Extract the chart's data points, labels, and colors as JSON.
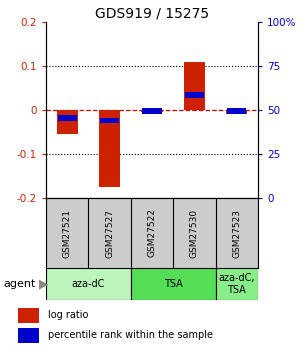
{
  "title": "GDS919 / 15275",
  "samples": [
    "GSM27521",
    "GSM27527",
    "GSM27522",
    "GSM27530",
    "GSM27523"
  ],
  "log_ratios": [
    -0.055,
    -0.175,
    -0.005,
    0.108,
    -0.01
  ],
  "percentile_ranks": [
    0.455,
    0.44,
    0.495,
    0.585,
    0.495
  ],
  "bar_width": 0.5,
  "ylim": [
    -0.2,
    0.2
  ],
  "yticks_left": [
    -0.2,
    -0.1,
    0,
    0.1,
    0.2
  ],
  "yticks_right": [
    0,
    25,
    50,
    75,
    100
  ],
  "ytick_labels_left": [
    "-0.2",
    "-0.1",
    "0",
    "0.1",
    "0.2"
  ],
  "ytick_labels_right": [
    "0",
    "25",
    "50",
    "75",
    "100%"
  ],
  "group_configs": [
    {
      "sample_indices": [
        0,
        1
      ],
      "label": "aza-dC",
      "color": "#bbf5bb"
    },
    {
      "sample_indices": [
        2,
        3
      ],
      "label": "TSA",
      "color": "#55dd55"
    },
    {
      "sample_indices": [
        4
      ],
      "label": "aza-dC,\nTSA",
      "color": "#88ee88"
    }
  ],
  "red_color": "#cc2200",
  "blue_color": "#0000cc",
  "legend_red": "log ratio",
  "legend_blue": "percentile rank within the sample",
  "zero_line_color": "#cc0000",
  "background_color": "#ffffff",
  "title_fontsize": 10,
  "tick_fontsize": 7.5,
  "sample_fontsize": 6.5,
  "agent_fontsize": 8,
  "legend_fontsize": 7,
  "label_gray": "#cccccc"
}
